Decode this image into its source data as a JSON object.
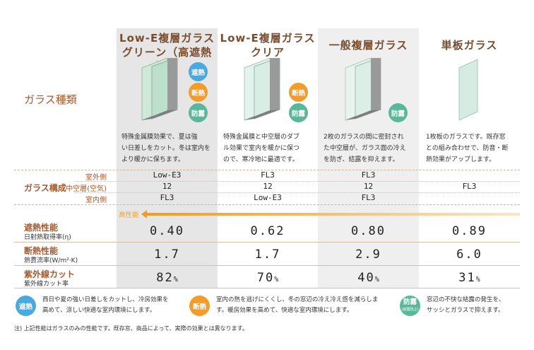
{
  "row_labels": {
    "glass_type": "ガラス種類",
    "composition": "ガラス構成",
    "outer": "室外側",
    "middle": "中空層(空気)",
    "inner": "室内側",
    "heat_shield": "遮熱性能",
    "heat_shield_sub": "日射熱取得率(η)",
    "insulation": "断熱性能",
    "insulation_sub": "熱貫流率(W/m²·K)",
    "uv": "紫外線カット",
    "uv_sub": "紫外線カット率",
    "high_perf": "高性能"
  },
  "columns": [
    {
      "title1": "Low-E複層ガラス",
      "title2": "グリーン（高遮熱型）",
      "badges": [
        "遮熱",
        "断熱",
        "防露"
      ],
      "desc": [
        "特殊金属膜効果で、夏は強",
        "い日差しをカット。冬は室内を",
        "より暖かに保ちます。"
      ],
      "outer": "Low-E3",
      "middle": "12",
      "inner": "FL3",
      "heat": "0.40",
      "insul": "1.7",
      "uv": "82",
      "uv_unit": "%"
    },
    {
      "title1": "Low-E複層ガラス",
      "title2": "クリア",
      "badges": [
        "断熱",
        "防露"
      ],
      "desc": [
        "特殊金属膜と中空層のダブ",
        "ル効果で室内を暖かに保つ",
        "ので、寒冷地に最適です。"
      ],
      "outer": "FL3",
      "middle": "12",
      "inner": "Low-E3",
      "heat": "0.62",
      "insul": "1.7",
      "uv": "70",
      "uv_unit": "%"
    },
    {
      "title1": "一般複層ガラス",
      "title2": "",
      "badges": [
        "防露"
      ],
      "desc": [
        "2枚のガラスの間に密封され",
        "た中空層が、ガラス面の冷え",
        "を防ぎ、結露を抑えます。"
      ],
      "outer": "FL3",
      "middle": "12",
      "inner": "FL3",
      "heat": "0.80",
      "insul": "2.9",
      "uv": "40",
      "uv_unit": "%"
    },
    {
      "title1": "単板ガラス",
      "title2": "",
      "badges": [],
      "desc": [
        "1枚板のガラスです。既存窓",
        "との組み合わせで、防音・断",
        "熱効果がアップします。"
      ],
      "single": "FL3",
      "heat": "0.89",
      "insul": "6.0",
      "uv": "31",
      "uv_unit": "%"
    }
  ],
  "legend": [
    {
      "badge": "遮熱",
      "text1": "西日や夏の強い日差しをカットし、冷房効果を",
      "text2": "高めて、涼しい快適な室内環境にします。"
    },
    {
      "badge": "断熱",
      "text1": "室内の熱を逃げにくくし、冬の窓辺の冷え冷え感を減らしま",
      "text2": "す。暖房効果を高めて、快適な室内環境にします。"
    },
    {
      "badge": "防露",
      "badge_sub": "(結露防止)",
      "text1": "窓辺の不快な結露の発生を、",
      "text2": "サッシとガラスで抑えます。"
    }
  ],
  "note": "注) 上記性能はガラスのみの性能です。既存窓、商品によって、実際の効果とは異なります。",
  "colors": {
    "heat": "#4aa9df",
    "insulation": "#f19c2b",
    "dew": "#59b89a",
    "label": "#a25a2e",
    "shade": "#e9e9e9",
    "arrow": "#f0a030"
  }
}
